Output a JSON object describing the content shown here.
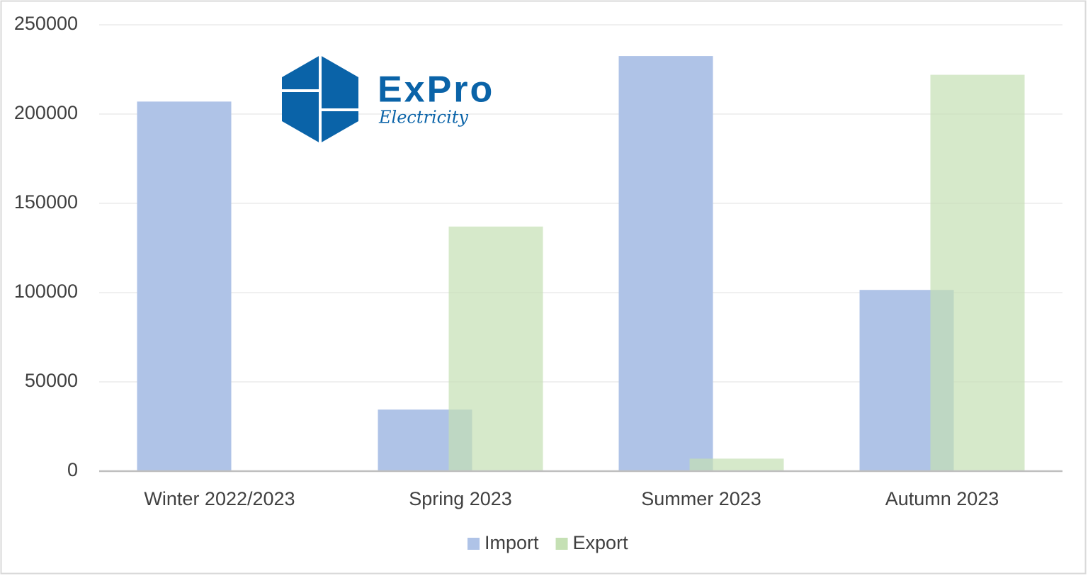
{
  "logo": {
    "name": "ExPro",
    "tagline": "Electricity"
  },
  "chart_data": {
    "type": "bar",
    "categories": [
      "Winter 2022/2023",
      "Spring 2023",
      "Summer 2023",
      "Autumn 2023"
    ],
    "series": [
      {
        "name": "Import",
        "color": "#afc3e7",
        "values": [
          207000,
          34500,
          232500,
          101500
        ]
      },
      {
        "name": "Export",
        "color": "#c5e0b4",
        "values": [
          0,
          137000,
          7000,
          222000
        ]
      }
    ],
    "ylim": [
      0,
      250000
    ],
    "yticks": [
      0,
      50000,
      100000,
      150000,
      200000,
      250000
    ],
    "grid": true,
    "legend": "bottom"
  }
}
